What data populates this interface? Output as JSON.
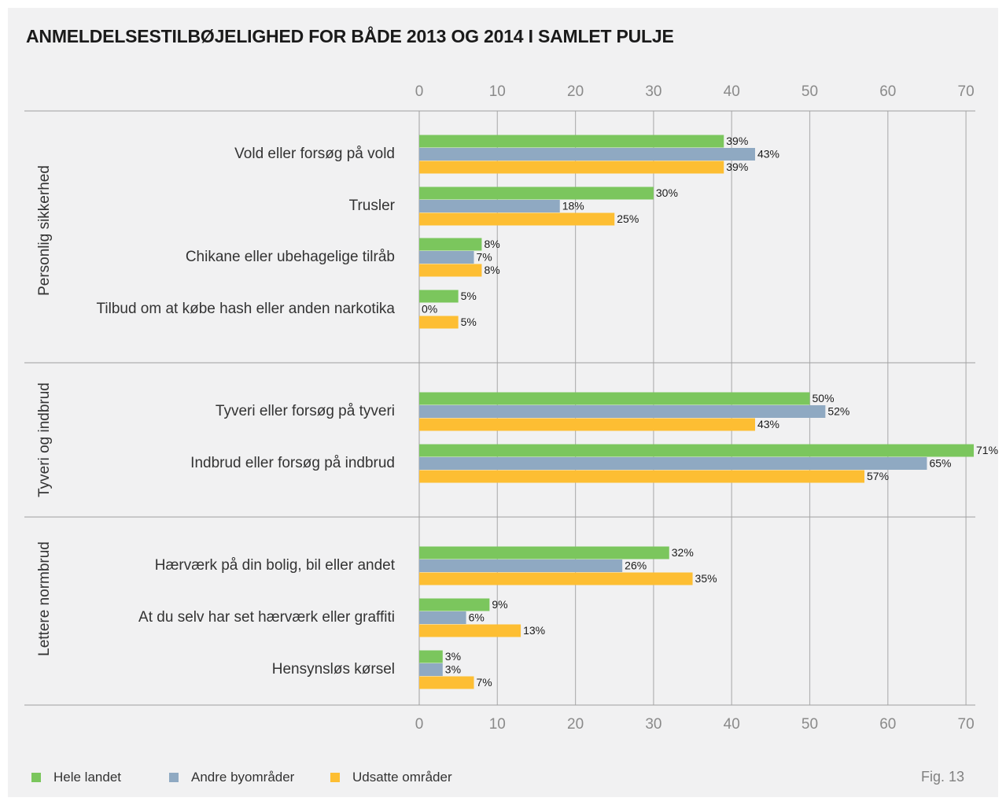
{
  "title": "ANMELDELSESTILBØJELIGHED FOR BÅDE 2013 OG 2014 I SAMLET PULJE",
  "fig_label": "Fig. 13",
  "chart_data": {
    "type": "bar",
    "orientation": "horizontal",
    "xlim": [
      0,
      70
    ],
    "xticks": [
      0,
      10,
      20,
      30,
      40,
      50,
      60,
      70
    ],
    "xtick_labels": [
      "0",
      "10",
      "20",
      "30",
      "40",
      "50",
      "60",
      "70"
    ],
    "grid": true,
    "value_label_suffix": "%",
    "legend_position": "bottom-left",
    "groups": [
      {
        "name": "Personlig sikkerhed",
        "categories": [
          "Vold eller forsøg på vold",
          "Trusler",
          "Chikane eller ubehagelige tilråb",
          "Tilbud om at købe hash eller anden narkotika"
        ]
      },
      {
        "name": "Tyveri og indbrud",
        "categories": [
          "Tyveri eller forsøg på tyveri",
          "Indbrud eller forsøg på indbrud"
        ]
      },
      {
        "name": "Lettere normbrud",
        "categories": [
          "Hærværk på din bolig, bil eller andet",
          "At du selv har set hærværk eller graffiti",
          "Hensynsløs kørsel"
        ]
      }
    ],
    "categories": [
      "Vold eller forsøg på vold",
      "Trusler",
      "Chikane eller ubehagelige tilråb",
      "Tilbud om at købe hash eller anden narkotika",
      "Tyveri eller forsøg på tyveri",
      "Indbrud eller forsøg på indbrud",
      "Hærværk på din bolig, bil eller andet",
      "At du selv har set hærværk eller graffiti",
      "Hensynsløs kørsel"
    ],
    "series": [
      {
        "name": "Hele landet",
        "color": "#7bc65d",
        "values": [
          39,
          30,
          8,
          5,
          50,
          71,
          32,
          9,
          3
        ]
      },
      {
        "name": "Andre byområder",
        "color": "#8fa9c2",
        "values": [
          43,
          18,
          7,
          0,
          52,
          65,
          26,
          6,
          3
        ]
      },
      {
        "name": "Udsatte områder",
        "color": "#fdbe33",
        "values": [
          39,
          25,
          8,
          5,
          43,
          57,
          35,
          13,
          7
        ]
      }
    ]
  }
}
